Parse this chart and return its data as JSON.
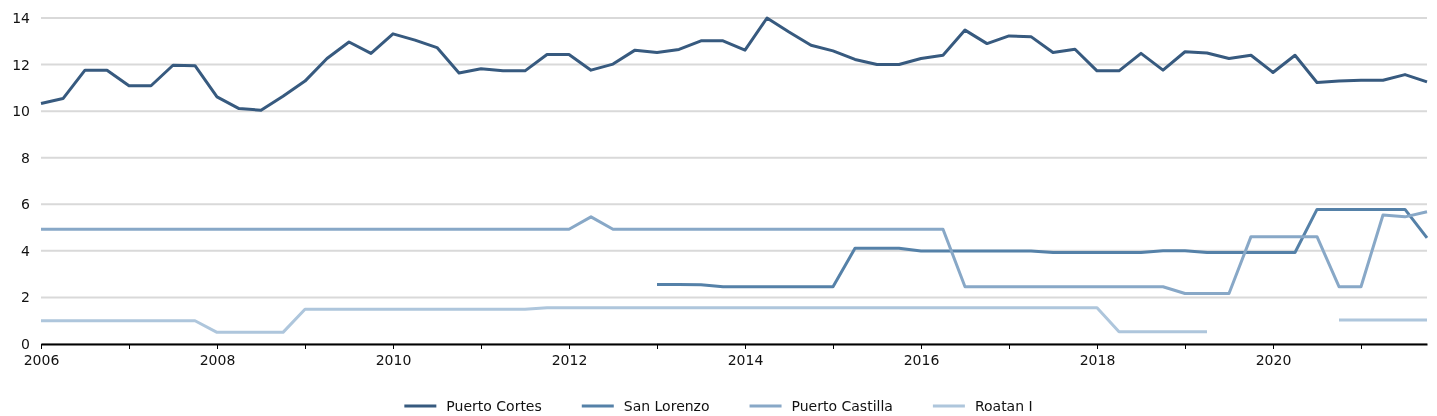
{
  "chart_data": {
    "type": "line",
    "x": [
      2006,
      2006.25,
      2006.5,
      2006.75,
      2007,
      2007.25,
      2007.5,
      2007.75,
      2008,
      2008.25,
      2008.5,
      2008.75,
      2009,
      2009.25,
      2009.5,
      2009.75,
      2010,
      2010.25,
      2010.5,
      2010.75,
      2011,
      2011.25,
      2011.5,
      2011.75,
      2012,
      2012.25,
      2012.5,
      2012.75,
      2013,
      2013.25,
      2013.5,
      2013.75,
      2014,
      2014.25,
      2014.5,
      2014.75,
      2015,
      2015.25,
      2015.5,
      2015.75,
      2016,
      2016.25,
      2016.5,
      2016.75,
      2017,
      2017.25,
      2017.5,
      2017.75,
      2018,
      2018.25,
      2018.5,
      2018.75,
      2019,
      2019.25,
      2019.5,
      2019.75,
      2020,
      2020.25,
      2020.5,
      2020.75,
      2021,
      2021.25,
      2021.5,
      2021.75
    ],
    "series": [
      {
        "name": "Puerto Cortes",
        "color": "#375a7f",
        "values": [
          10.33,
          10.54,
          11.76,
          11.76,
          11.09,
          11.09,
          11.97,
          11.95,
          10.61,
          10.11,
          10.04,
          10.64,
          11.29,
          12.26,
          12.97,
          12.48,
          13.32,
          13.05,
          12.73,
          11.64,
          11.82,
          11.73,
          11.73,
          12.43,
          12.43,
          11.76,
          12.02,
          12.62,
          12.52,
          12.65,
          13.02,
          13.02,
          12.62,
          14.0,
          13.4,
          12.83,
          12.59,
          12.22,
          12.0,
          12.0,
          12.26,
          12.4,
          13.48,
          12.9,
          13.23,
          13.2,
          12.52,
          12.66,
          11.73,
          11.73,
          12.48,
          11.76,
          12.55,
          12.5,
          12.26,
          12.4,
          11.66,
          12.4,
          11.23,
          11.29,
          11.33,
          11.33,
          11.57,
          11.26
        ]
      },
      {
        "name": "San Lorenzo",
        "color": "#5581a8",
        "values": [
          null,
          null,
          null,
          null,
          null,
          null,
          null,
          null,
          null,
          null,
          null,
          null,
          null,
          null,
          null,
          null,
          null,
          null,
          null,
          null,
          null,
          null,
          null,
          null,
          null,
          null,
          null,
          null,
          2.55,
          2.55,
          2.54,
          2.46,
          2.46,
          2.46,
          2.46,
          2.46,
          2.46,
          4.11,
          4.11,
          4.11,
          3.99,
          3.99,
          3.99,
          3.99,
          3.99,
          3.99,
          3.93,
          3.93,
          3.93,
          3.93,
          3.93,
          4.0,
          4.0,
          3.93,
          3.93,
          3.93,
          3.93,
          3.93,
          5.78,
          5.78,
          5.78,
          5.78,
          5.78,
          4.56
        ]
      },
      {
        "name": "Puerto Castilla",
        "color": "#88a8c7",
        "values": [
          4.93,
          4.93,
          4.93,
          4.93,
          4.93,
          4.93,
          4.93,
          4.93,
          4.93,
          4.93,
          4.93,
          4.93,
          4.93,
          4.93,
          4.93,
          4.93,
          4.93,
          4.93,
          4.93,
          4.93,
          4.93,
          4.93,
          4.93,
          4.93,
          4.93,
          5.46,
          4.93,
          4.93,
          4.93,
          4.93,
          4.93,
          4.93,
          4.93,
          4.93,
          4.93,
          4.93,
          4.93,
          4.93,
          4.93,
          4.93,
          4.93,
          4.93,
          2.46,
          2.46,
          2.46,
          2.46,
          2.46,
          2.46,
          2.46,
          2.46,
          2.46,
          2.46,
          2.17,
          2.17,
          2.17,
          4.61,
          4.61,
          4.61,
          4.61,
          2.46,
          2.46,
          5.54,
          5.46,
          5.68
        ]
      },
      {
        "name": "Roatan I",
        "color": "#aec6dc",
        "values": [
          1,
          1,
          1,
          1,
          1,
          1,
          1,
          1,
          0.5,
          0.5,
          0.5,
          0.5,
          1.49,
          1.49,
          1.49,
          1.49,
          1.49,
          1.49,
          1.49,
          1.49,
          1.49,
          1.49,
          1.49,
          1.56,
          1.56,
          1.56,
          1.56,
          1.56,
          1.56,
          1.56,
          1.56,
          1.56,
          1.56,
          1.56,
          1.56,
          1.56,
          1.56,
          1.56,
          1.56,
          1.56,
          1.56,
          1.56,
          1.56,
          1.56,
          1.56,
          1.56,
          1.56,
          1.56,
          1.56,
          0.53,
          0.53,
          0.53,
          0.53,
          0.53,
          null,
          null,
          null,
          null,
          null,
          1.03,
          1.03,
          1.03,
          1.03,
          1.03
        ]
      }
    ],
    "xlim": [
      2006,
      2021.75
    ],
    "xticks": [
      2006,
      {
        "value": 2007,
        "label": null
      },
      2008,
      {
        "value": 2009,
        "label": null
      },
      2010,
      {
        "value": 2011,
        "label": null
      },
      2012,
      {
        "value": 2013,
        "label": null
      },
      2014,
      {
        "value": 2015,
        "label": null
      },
      2016,
      {
        "value": 2017,
        "label": null
      },
      2018,
      {
        "value": 2019,
        "label": null
      },
      2020,
      {
        "value": 2021,
        "label": null
      }
    ],
    "ylim": [
      0,
      14
    ],
    "yticks": [
      0,
      2,
      4,
      6,
      8,
      10,
      12,
      14
    ],
    "grid": "y",
    "legend": "bottom"
  }
}
